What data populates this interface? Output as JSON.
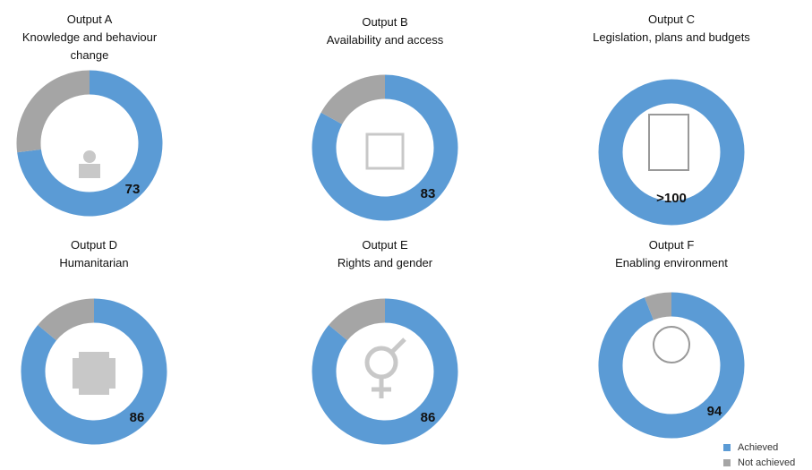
{
  "chart_data": [
    {
      "type": "donut",
      "title": "Output A",
      "subtitle": "Knowledge and behaviour change",
      "achieved": 73,
      "not_achieved": 27
    },
    {
      "type": "donut",
      "title": "Output B",
      "subtitle": "Availability and access",
      "achieved": 83,
      "not_achieved": 17
    },
    {
      "type": "donut",
      "title": "Output C",
      "subtitle": "Legislation, plans and budgets",
      "achieved": 100,
      "achieved_label": ">100"
    },
    {
      "type": "donut",
      "title": "Output D",
      "subtitle": "Humanitarian",
      "achieved": 86,
      "not_achieved": 14
    },
    {
      "type": "donut",
      "title": "Output E",
      "subtitle": "Rights and gender",
      "achieved": 86,
      "not_achieved": 14
    },
    {
      "type": "donut",
      "title": "Output F",
      "subtitle": "Enabling environment",
      "achieved": 94,
      "not_achieved": 6
    }
  ],
  "legend": {
    "labels": [
      "Achieved",
      "Not achieved"
    ],
    "colors": [
      "#5b9bd5",
      "#a5a5a5"
    ]
  }
}
